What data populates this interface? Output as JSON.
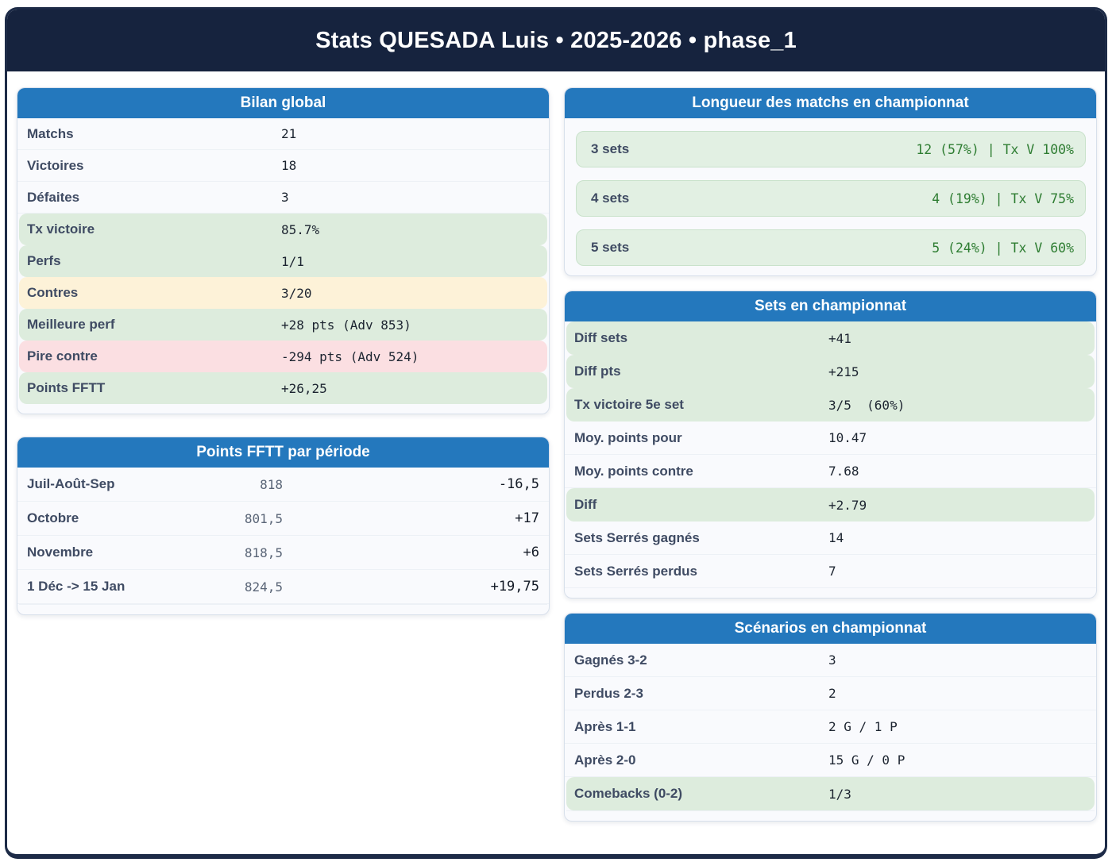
{
  "title": "Stats QUESADA Luis • 2025-2026 • phase_1",
  "colors": {
    "header_navy": "#16233e",
    "panel_blue": "#2478bd",
    "highlight_green": "#ddecdd",
    "highlight_yellow": "#fdf2d8",
    "highlight_red": "#fbdfe2",
    "pill_green_bg": "#e2f0e3",
    "green_text": "#2e7d32"
  },
  "panels": {
    "bilan": {
      "title": "Bilan global",
      "rows": [
        {
          "label": "Matchs",
          "value": "21",
          "highlight": "none"
        },
        {
          "label": "Victoires",
          "value": "18",
          "highlight": "none"
        },
        {
          "label": "Défaites",
          "value": "3",
          "highlight": "none"
        },
        {
          "label": "Tx victoire",
          "value": "85.7%",
          "highlight": "green"
        },
        {
          "label": "Perfs",
          "value": "1/1",
          "highlight": "green"
        },
        {
          "label": "Contres",
          "value": "3/20",
          "highlight": "yellow"
        },
        {
          "label": "Meilleure perf",
          "value": "+28 pts (Adv 853)",
          "highlight": "green"
        },
        {
          "label": "Pire contre",
          "value": "-294 pts (Adv 524)",
          "highlight": "red"
        },
        {
          "label": "Points FFTT",
          "value": "+26,25",
          "highlight": "green"
        }
      ]
    },
    "periode": {
      "title": "Points FFTT par période",
      "rows": [
        {
          "label": "Juil-Août-Sep",
          "points": "818",
          "delta": "-16,5"
        },
        {
          "label": "Octobre",
          "points": "801,5",
          "delta": "+17"
        },
        {
          "label": "Novembre",
          "points": "818,5",
          "delta": "+6"
        },
        {
          "label": "1 Déc -> 15 Jan",
          "points": "824,5",
          "delta": "+19,75"
        }
      ]
    },
    "longueur": {
      "title": "Longueur des matchs en championnat",
      "rows": [
        {
          "label": "3 sets",
          "value": "12 (57%) | Tx V 100%"
        },
        {
          "label": "4 sets",
          "value": "4 (19%) | Tx V 75%"
        },
        {
          "label": "5 sets",
          "value": "5 (24%) | Tx V 60%"
        }
      ]
    },
    "sets": {
      "title": "Sets en championnat",
      "rows": [
        {
          "label": "Diff sets",
          "value": "+41",
          "highlight": "green"
        },
        {
          "label": "Diff pts",
          "value": "+215",
          "highlight": "green"
        },
        {
          "label": "Tx victoire 5e set",
          "value": "3/5  (60%)",
          "highlight": "green"
        },
        {
          "label": "Moy. points pour",
          "value": "10.47",
          "highlight": "none"
        },
        {
          "label": "Moy. points contre",
          "value": "7.68",
          "highlight": "none"
        },
        {
          "label": "Diff",
          "value": "+2.79",
          "highlight": "green"
        },
        {
          "label": "Sets Serrés gagnés",
          "value": "14",
          "highlight": "none"
        },
        {
          "label": "Sets Serrés perdus",
          "value": "7",
          "highlight": "none"
        }
      ]
    },
    "scenarios": {
      "title": "Scénarios en championnat",
      "rows": [
        {
          "label": "Gagnés 3-2",
          "value": "3",
          "highlight": "none"
        },
        {
          "label": "Perdus 2-3",
          "value": "2",
          "highlight": "none"
        },
        {
          "label": "Après 1-1",
          "value": "2 G / 1 P",
          "highlight": "none"
        },
        {
          "label": "Après 2-0",
          "value": "15 G / 0 P",
          "highlight": "none"
        },
        {
          "label": "Comebacks (0-2)",
          "value": "1/3",
          "highlight": "green"
        }
      ]
    }
  }
}
